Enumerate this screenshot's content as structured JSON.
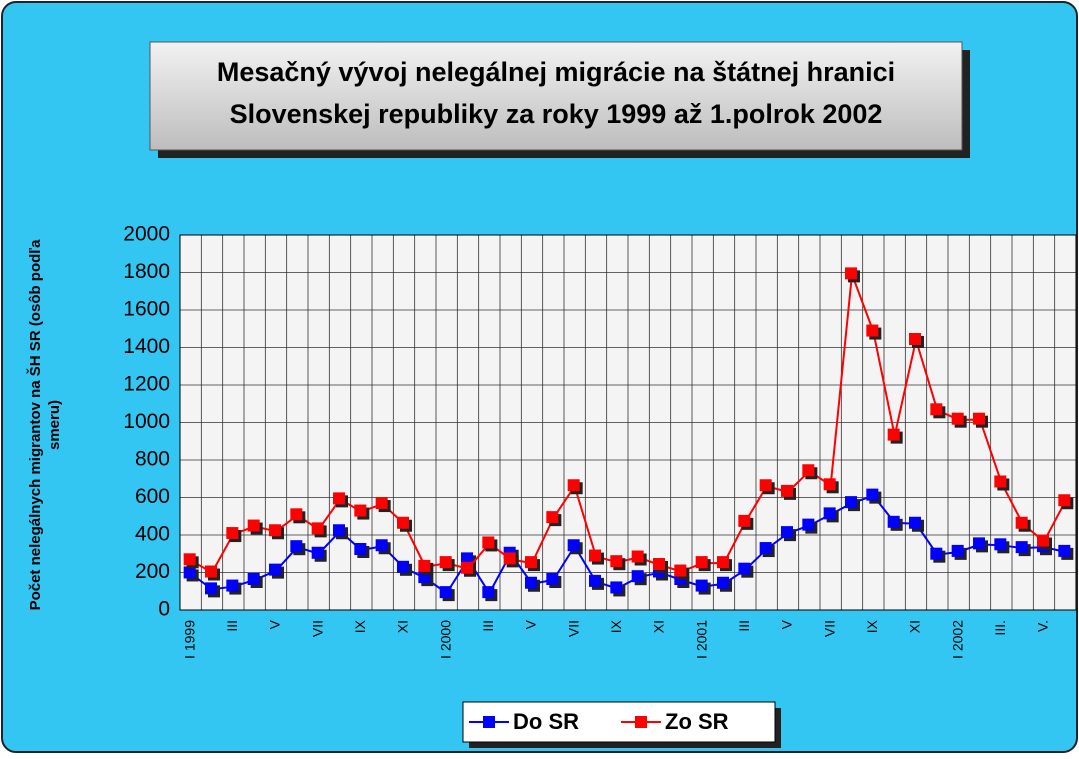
{
  "chart_data": {
    "type": "line",
    "title": "Mesačný vývoj nelegálnej migrácie na štátnej hranici Slovenskej republiky za roky 1999 až 1.polrok 2002",
    "y_label": "Počet nelegálnych migrantov na ŠH SR (osôb podľa smeru)",
    "categories": [
      "I 1999",
      null,
      "III",
      null,
      "V",
      null,
      "VII",
      null,
      "IX",
      null,
      "XI",
      null,
      "I 2000",
      null,
      "III",
      null,
      "V",
      null,
      "VII",
      null,
      "IX",
      null,
      "XI",
      null,
      "I 2001",
      null,
      "III",
      null,
      "V",
      null,
      "VII",
      null,
      "IX",
      null,
      "XI",
      null,
      "I 2002",
      null,
      "III.",
      null,
      "V.",
      null
    ],
    "series": [
      {
        "name": "Do SR",
        "color": "#0000ff",
        "values": [
          195,
          110,
          125,
          160,
          210,
          335,
          300,
          420,
          320,
          340,
          225,
          170,
          90,
          270,
          90,
          300,
          140,
          160,
          340,
          150,
          115,
          175,
          200,
          160,
          125,
          140,
          215,
          325,
          410,
          450,
          510,
          570,
          610,
          465,
          460,
          295,
          310,
          350,
          345,
          330,
          335,
          310
        ]
      },
      {
        "name": "Zo SR",
        "color": "#ff0000",
        "values": [
          265,
          200,
          405,
          445,
          420,
          505,
          430,
          590,
          525,
          565,
          460,
          230,
          250,
          220,
          355,
          270,
          250,
          490,
          660,
          285,
          255,
          280,
          240,
          205,
          250,
          250,
          470,
          660,
          630,
          740,
          665,
          1790,
          1485,
          930,
          1440,
          1065,
          1015,
          1015,
          680,
          460,
          365,
          580
        ]
      }
    ],
    "ylim": [
      0,
      2000
    ],
    "yticks": [
      0,
      200,
      400,
      600,
      800,
      1000,
      1200,
      1400,
      1600,
      1800,
      2000
    ],
    "grid": true,
    "legend": "bottom"
  }
}
